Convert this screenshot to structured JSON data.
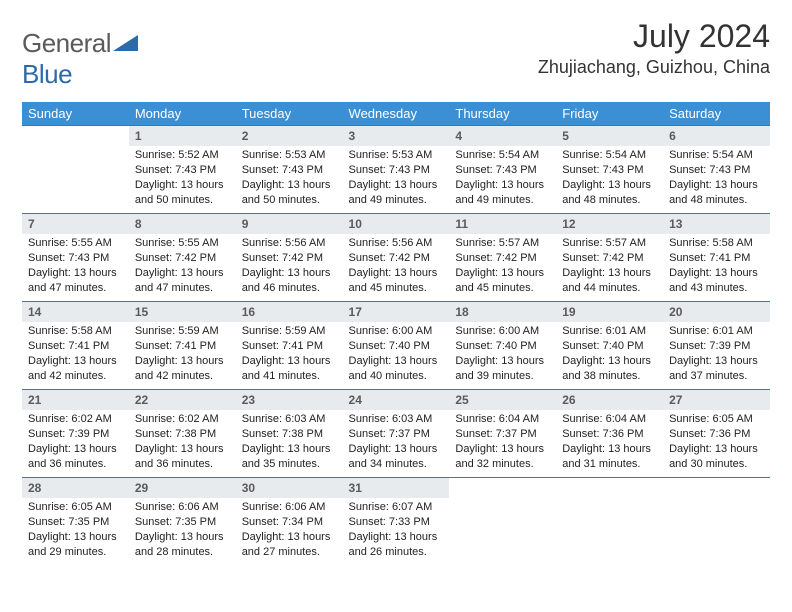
{
  "logo": {
    "part1": "General",
    "part2": "Blue"
  },
  "title": "July 2024",
  "location": "Zhujiachang, Guizhou, China",
  "colors": {
    "header_bg": "#3b8fd4",
    "header_text": "#ffffff",
    "daynum_bg": "#e8ebee",
    "daynum_text": "#5a5a5a",
    "border": "#3b7aa8",
    "logo_gray": "#5a5a5a",
    "logo_blue": "#2d6aa8"
  },
  "weekdays": [
    "Sunday",
    "Monday",
    "Tuesday",
    "Wednesday",
    "Thursday",
    "Friday",
    "Saturday"
  ],
  "weeks": [
    [
      {
        "n": "",
        "sr": "",
        "ss": "",
        "dl": ""
      },
      {
        "n": "1",
        "sr": "Sunrise: 5:52 AM",
        "ss": "Sunset: 7:43 PM",
        "dl": "Daylight: 13 hours and 50 minutes."
      },
      {
        "n": "2",
        "sr": "Sunrise: 5:53 AM",
        "ss": "Sunset: 7:43 PM",
        "dl": "Daylight: 13 hours and 50 minutes."
      },
      {
        "n": "3",
        "sr": "Sunrise: 5:53 AM",
        "ss": "Sunset: 7:43 PM",
        "dl": "Daylight: 13 hours and 49 minutes."
      },
      {
        "n": "4",
        "sr": "Sunrise: 5:54 AM",
        "ss": "Sunset: 7:43 PM",
        "dl": "Daylight: 13 hours and 49 minutes."
      },
      {
        "n": "5",
        "sr": "Sunrise: 5:54 AM",
        "ss": "Sunset: 7:43 PM",
        "dl": "Daylight: 13 hours and 48 minutes."
      },
      {
        "n": "6",
        "sr": "Sunrise: 5:54 AM",
        "ss": "Sunset: 7:43 PM",
        "dl": "Daylight: 13 hours and 48 minutes."
      }
    ],
    [
      {
        "n": "7",
        "sr": "Sunrise: 5:55 AM",
        "ss": "Sunset: 7:43 PM",
        "dl": "Daylight: 13 hours and 47 minutes."
      },
      {
        "n": "8",
        "sr": "Sunrise: 5:55 AM",
        "ss": "Sunset: 7:42 PM",
        "dl": "Daylight: 13 hours and 47 minutes."
      },
      {
        "n": "9",
        "sr": "Sunrise: 5:56 AM",
        "ss": "Sunset: 7:42 PM",
        "dl": "Daylight: 13 hours and 46 minutes."
      },
      {
        "n": "10",
        "sr": "Sunrise: 5:56 AM",
        "ss": "Sunset: 7:42 PM",
        "dl": "Daylight: 13 hours and 45 minutes."
      },
      {
        "n": "11",
        "sr": "Sunrise: 5:57 AM",
        "ss": "Sunset: 7:42 PM",
        "dl": "Daylight: 13 hours and 45 minutes."
      },
      {
        "n": "12",
        "sr": "Sunrise: 5:57 AM",
        "ss": "Sunset: 7:42 PM",
        "dl": "Daylight: 13 hours and 44 minutes."
      },
      {
        "n": "13",
        "sr": "Sunrise: 5:58 AM",
        "ss": "Sunset: 7:41 PM",
        "dl": "Daylight: 13 hours and 43 minutes."
      }
    ],
    [
      {
        "n": "14",
        "sr": "Sunrise: 5:58 AM",
        "ss": "Sunset: 7:41 PM",
        "dl": "Daylight: 13 hours and 42 minutes."
      },
      {
        "n": "15",
        "sr": "Sunrise: 5:59 AM",
        "ss": "Sunset: 7:41 PM",
        "dl": "Daylight: 13 hours and 42 minutes."
      },
      {
        "n": "16",
        "sr": "Sunrise: 5:59 AM",
        "ss": "Sunset: 7:41 PM",
        "dl": "Daylight: 13 hours and 41 minutes."
      },
      {
        "n": "17",
        "sr": "Sunrise: 6:00 AM",
        "ss": "Sunset: 7:40 PM",
        "dl": "Daylight: 13 hours and 40 minutes."
      },
      {
        "n": "18",
        "sr": "Sunrise: 6:00 AM",
        "ss": "Sunset: 7:40 PM",
        "dl": "Daylight: 13 hours and 39 minutes."
      },
      {
        "n": "19",
        "sr": "Sunrise: 6:01 AM",
        "ss": "Sunset: 7:40 PM",
        "dl": "Daylight: 13 hours and 38 minutes."
      },
      {
        "n": "20",
        "sr": "Sunrise: 6:01 AM",
        "ss": "Sunset: 7:39 PM",
        "dl": "Daylight: 13 hours and 37 minutes."
      }
    ],
    [
      {
        "n": "21",
        "sr": "Sunrise: 6:02 AM",
        "ss": "Sunset: 7:39 PM",
        "dl": "Daylight: 13 hours and 36 minutes."
      },
      {
        "n": "22",
        "sr": "Sunrise: 6:02 AM",
        "ss": "Sunset: 7:38 PM",
        "dl": "Daylight: 13 hours and 36 minutes."
      },
      {
        "n": "23",
        "sr": "Sunrise: 6:03 AM",
        "ss": "Sunset: 7:38 PM",
        "dl": "Daylight: 13 hours and 35 minutes."
      },
      {
        "n": "24",
        "sr": "Sunrise: 6:03 AM",
        "ss": "Sunset: 7:37 PM",
        "dl": "Daylight: 13 hours and 34 minutes."
      },
      {
        "n": "25",
        "sr": "Sunrise: 6:04 AM",
        "ss": "Sunset: 7:37 PM",
        "dl": "Daylight: 13 hours and 32 minutes."
      },
      {
        "n": "26",
        "sr": "Sunrise: 6:04 AM",
        "ss": "Sunset: 7:36 PM",
        "dl": "Daylight: 13 hours and 31 minutes."
      },
      {
        "n": "27",
        "sr": "Sunrise: 6:05 AM",
        "ss": "Sunset: 7:36 PM",
        "dl": "Daylight: 13 hours and 30 minutes."
      }
    ],
    [
      {
        "n": "28",
        "sr": "Sunrise: 6:05 AM",
        "ss": "Sunset: 7:35 PM",
        "dl": "Daylight: 13 hours and 29 minutes."
      },
      {
        "n": "29",
        "sr": "Sunrise: 6:06 AM",
        "ss": "Sunset: 7:35 PM",
        "dl": "Daylight: 13 hours and 28 minutes."
      },
      {
        "n": "30",
        "sr": "Sunrise: 6:06 AM",
        "ss": "Sunset: 7:34 PM",
        "dl": "Daylight: 13 hours and 27 minutes."
      },
      {
        "n": "31",
        "sr": "Sunrise: 6:07 AM",
        "ss": "Sunset: 7:33 PM",
        "dl": "Daylight: 13 hours and 26 minutes."
      },
      {
        "n": "",
        "sr": "",
        "ss": "",
        "dl": ""
      },
      {
        "n": "",
        "sr": "",
        "ss": "",
        "dl": ""
      },
      {
        "n": "",
        "sr": "",
        "ss": "",
        "dl": ""
      }
    ]
  ]
}
